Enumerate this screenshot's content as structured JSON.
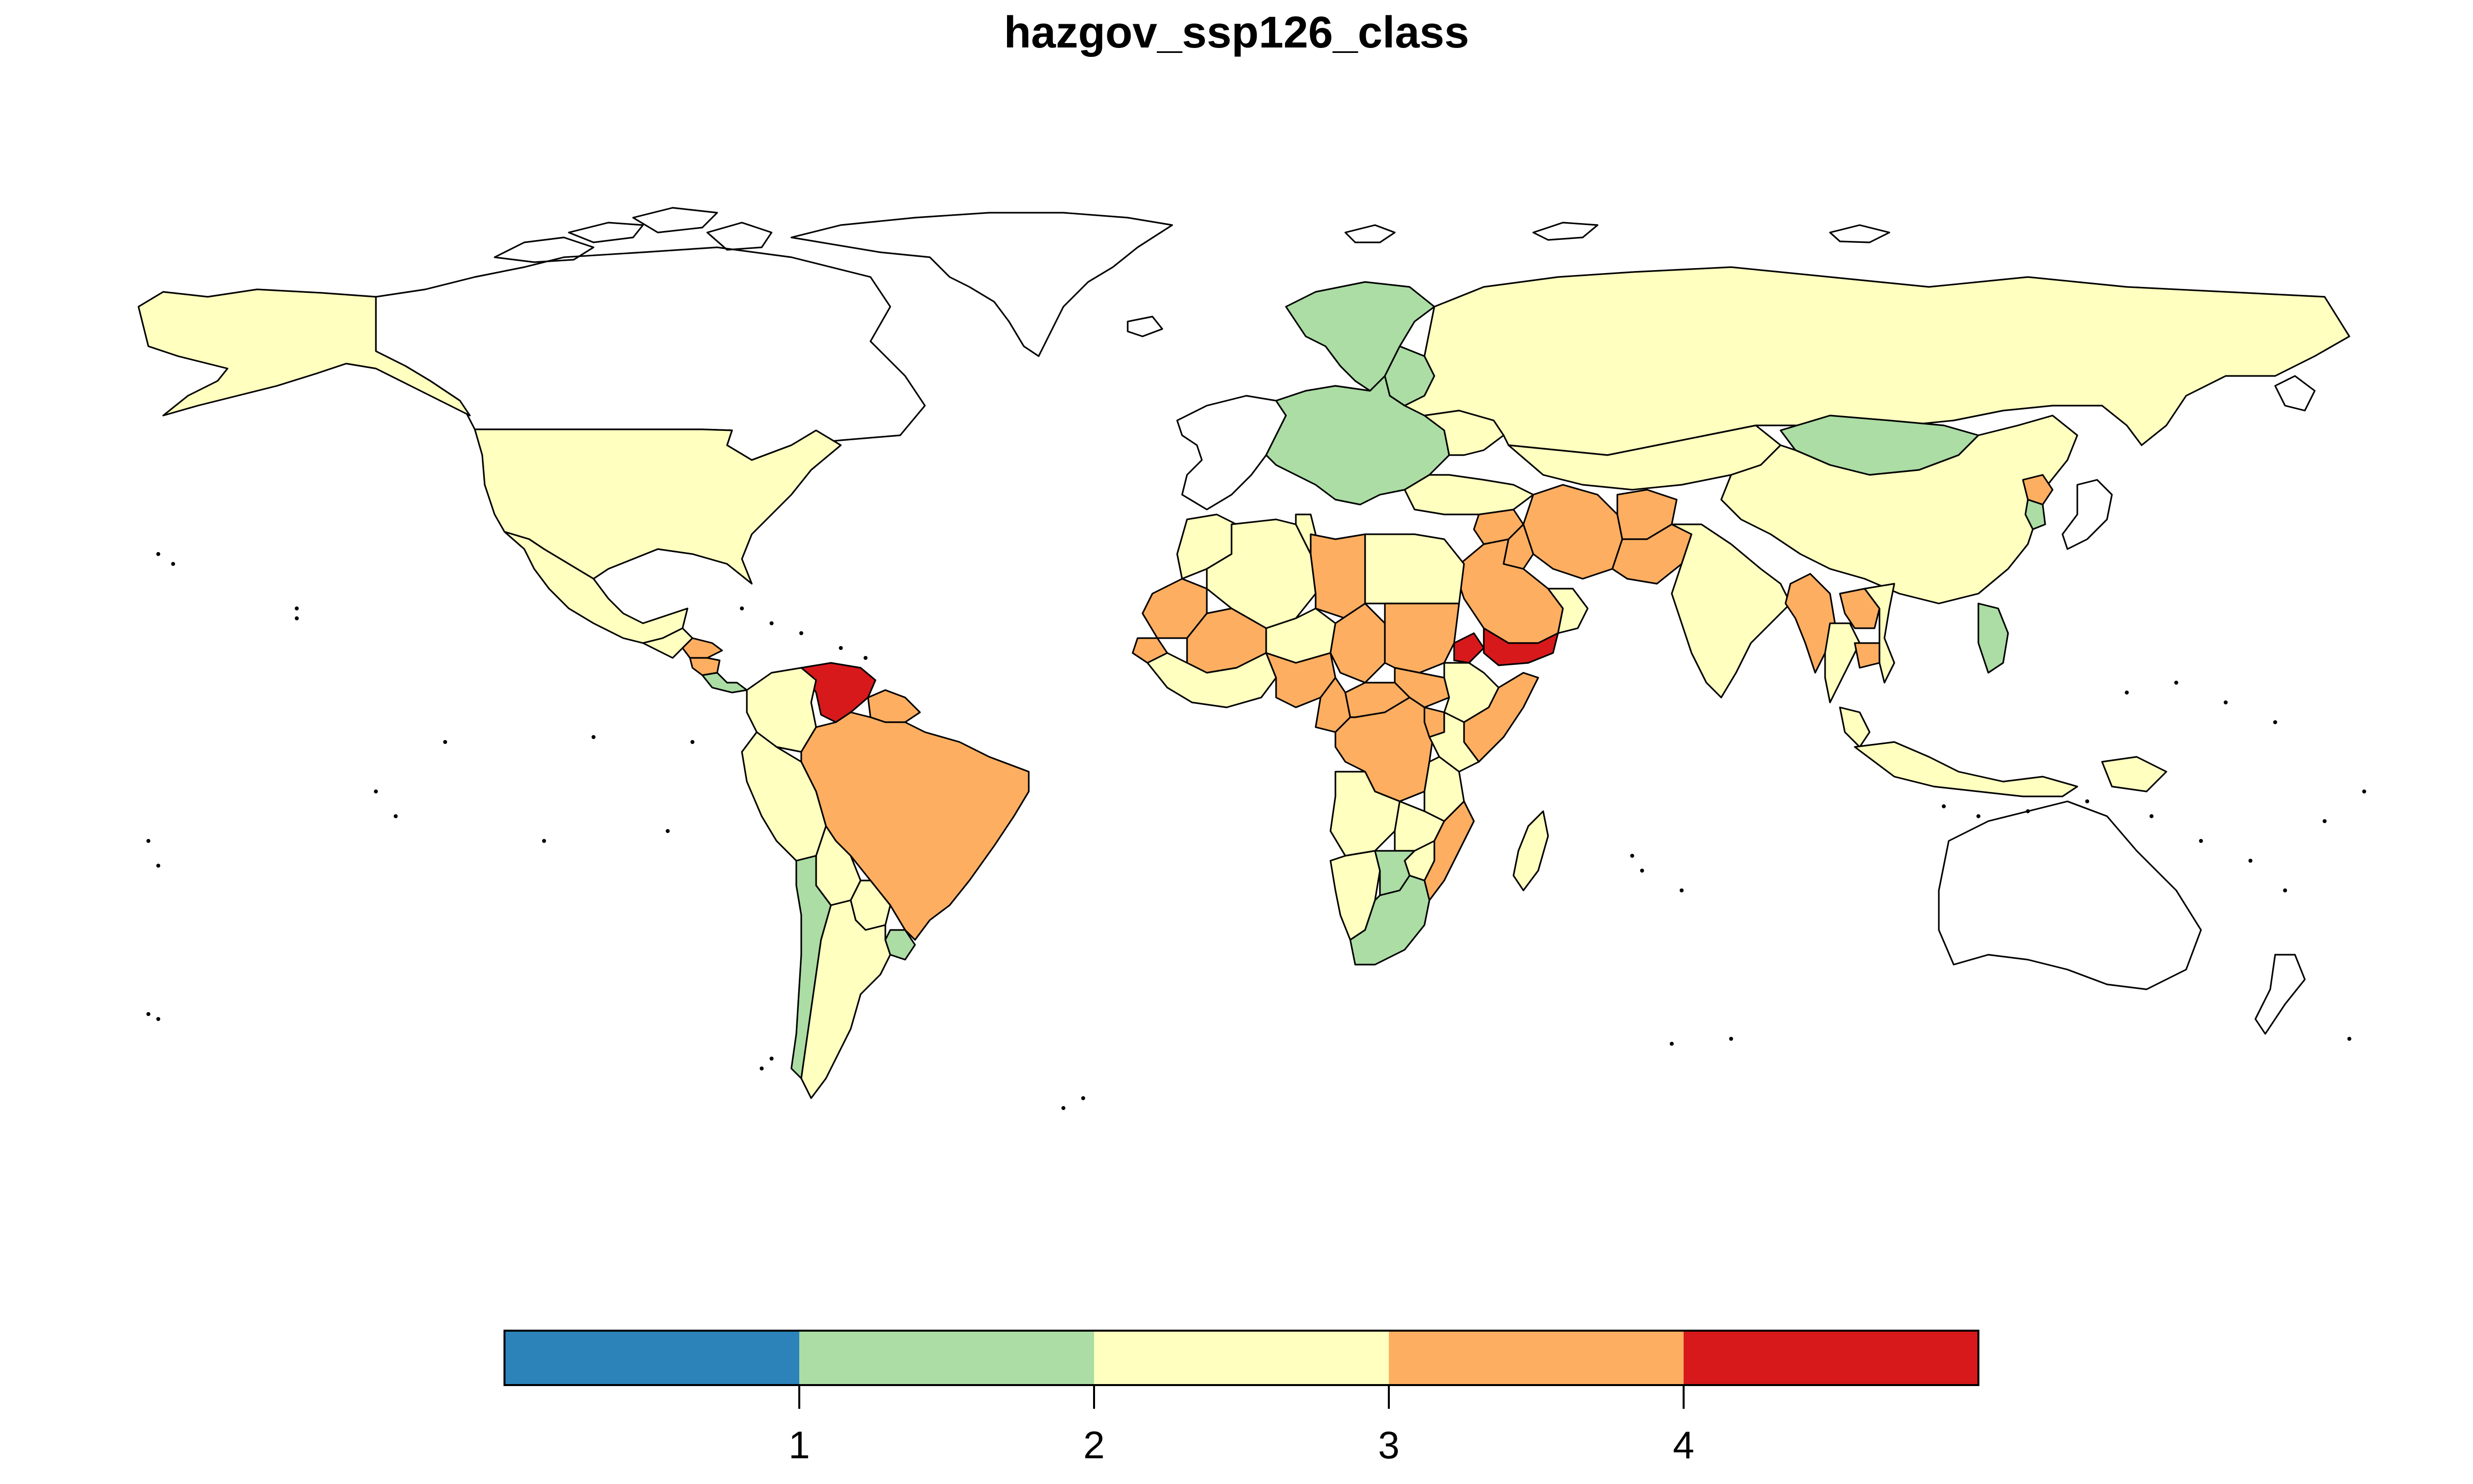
{
  "title": "hazgov_ssp126_class",
  "legend": {
    "type": "color-ramp",
    "position": "bottom-center",
    "breaks": [
      1,
      2,
      3,
      4
    ],
    "classes": [
      {
        "range": [
          0,
          1
        ],
        "color": "#2b83ba"
      },
      {
        "range": [
          1,
          2
        ],
        "color": "#abdda4"
      },
      {
        "range": [
          2,
          3
        ],
        "color": "#ffffbf"
      },
      {
        "range": [
          3,
          4
        ],
        "color": "#fdae61"
      },
      {
        "range": [
          4,
          5
        ],
        "color": "#d7191c"
      }
    ],
    "tick_labels": [
      "1",
      "2",
      "3",
      "4"
    ]
  },
  "map": {
    "projection": "equirectangular",
    "no_data_fill": "#ffffff",
    "border_color": "#000000",
    "regions": [
      {
        "name": "Canada",
        "class": "none"
      },
      {
        "name": "Greenland",
        "class": "none"
      },
      {
        "name": "Alaska",
        "class": 2
      },
      {
        "name": "United States",
        "class": 2
      },
      {
        "name": "Mexico",
        "class": 2
      },
      {
        "name": "Central America",
        "class": 2
      },
      {
        "name": "Honduras",
        "class": 3
      },
      {
        "name": "Nicaragua",
        "class": 3
      },
      {
        "name": "Costa Rica",
        "class": 1
      },
      {
        "name": "Venezuela",
        "class": 4
      },
      {
        "name": "Colombia",
        "class": 2
      },
      {
        "name": "Guyana",
        "class": 3
      },
      {
        "name": "Brazil",
        "class": 3
      },
      {
        "name": "Peru",
        "class": 2
      },
      {
        "name": "Bolivia",
        "class": 2
      },
      {
        "name": "Paraguay",
        "class": 2
      },
      {
        "name": "Chile",
        "class": 1
      },
      {
        "name": "Argentina",
        "class": 2
      },
      {
        "name": "Uruguay",
        "class": 1
      },
      {
        "name": "Western Europe",
        "class": "none"
      },
      {
        "name": "Central Europe",
        "class": 1
      },
      {
        "name": "Scandinavia",
        "class": 1
      },
      {
        "name": "Baltic States",
        "class": 1
      },
      {
        "name": "Russia",
        "class": 2
      },
      {
        "name": "Ukraine",
        "class": 2
      },
      {
        "name": "Kazakhstan",
        "class": 2
      },
      {
        "name": "Mongolia",
        "class": 1
      },
      {
        "name": "China",
        "class": 2
      },
      {
        "name": "North Korea",
        "class": 3
      },
      {
        "name": "South Korea",
        "class": 1
      },
      {
        "name": "Iran",
        "class": 3
      },
      {
        "name": "Afghanistan",
        "class": 3
      },
      {
        "name": "Pakistan",
        "class": 3
      },
      {
        "name": "Saudi Arabia",
        "class": 3
      },
      {
        "name": "Iraq",
        "class": 3
      },
      {
        "name": "Syria",
        "class": 3
      },
      {
        "name": "Turkey",
        "class": 2
      },
      {
        "name": "Oman",
        "class": 2
      },
      {
        "name": "Yemen",
        "class": 4
      },
      {
        "name": "Eritrea",
        "class": 4
      },
      {
        "name": "India",
        "class": 2
      },
      {
        "name": "Myanmar",
        "class": 3
      },
      {
        "name": "Thailand",
        "class": 2
      },
      {
        "name": "Laos",
        "class": 3
      },
      {
        "name": "Cambodia",
        "class": 3
      },
      {
        "name": "Vietnam",
        "class": 2
      },
      {
        "name": "Malaysia",
        "class": 2
      },
      {
        "name": "Indonesia",
        "class": 2
      },
      {
        "name": "Philippines",
        "class": 1
      },
      {
        "name": "Papua New Guinea",
        "class": 2
      },
      {
        "name": "Japan",
        "class": "none"
      },
      {
        "name": "Australia",
        "class": "none"
      },
      {
        "name": "New Zealand",
        "class": "none"
      },
      {
        "name": "Morocco",
        "class": 2
      },
      {
        "name": "Algeria",
        "class": 2
      },
      {
        "name": "Tunisia",
        "class": 2
      },
      {
        "name": "Libya",
        "class": 3
      },
      {
        "name": "Egypt",
        "class": 2
      },
      {
        "name": "Mauritania",
        "class": 3
      },
      {
        "name": "Mali",
        "class": 3
      },
      {
        "name": "Niger",
        "class": 2
      },
      {
        "name": "Chad",
        "class": 3
      },
      {
        "name": "Sudan",
        "class": 3
      },
      {
        "name": "South Sudan",
        "class": 3
      },
      {
        "name": "Ethiopia",
        "class": 2
      },
      {
        "name": "Somalia",
        "class": 3
      },
      {
        "name": "Senegal",
        "class": 3
      },
      {
        "name": "West Africa Coast",
        "class": 2
      },
      {
        "name": "Nigeria",
        "class": 3
      },
      {
        "name": "Cameroon",
        "class": 3
      },
      {
        "name": "Central African Republic",
        "class": 3
      },
      {
        "name": "DR Congo",
        "class": 3
      },
      {
        "name": "Uganda",
        "class": 3
      },
      {
        "name": "Kenya",
        "class": 2
      },
      {
        "name": "Tanzania",
        "class": 2
      },
      {
        "name": "Angola",
        "class": 2
      },
      {
        "name": "Zambia",
        "class": 2
      },
      {
        "name": "Mozambique",
        "class": 3
      },
      {
        "name": "Zimbabwe",
        "class": 2
      },
      {
        "name": "Namibia",
        "class": 2
      },
      {
        "name": "Botswana",
        "class": 1
      },
      {
        "name": "South Africa",
        "class": 1
      },
      {
        "name": "Madagascar",
        "class": 2
      }
    ]
  }
}
